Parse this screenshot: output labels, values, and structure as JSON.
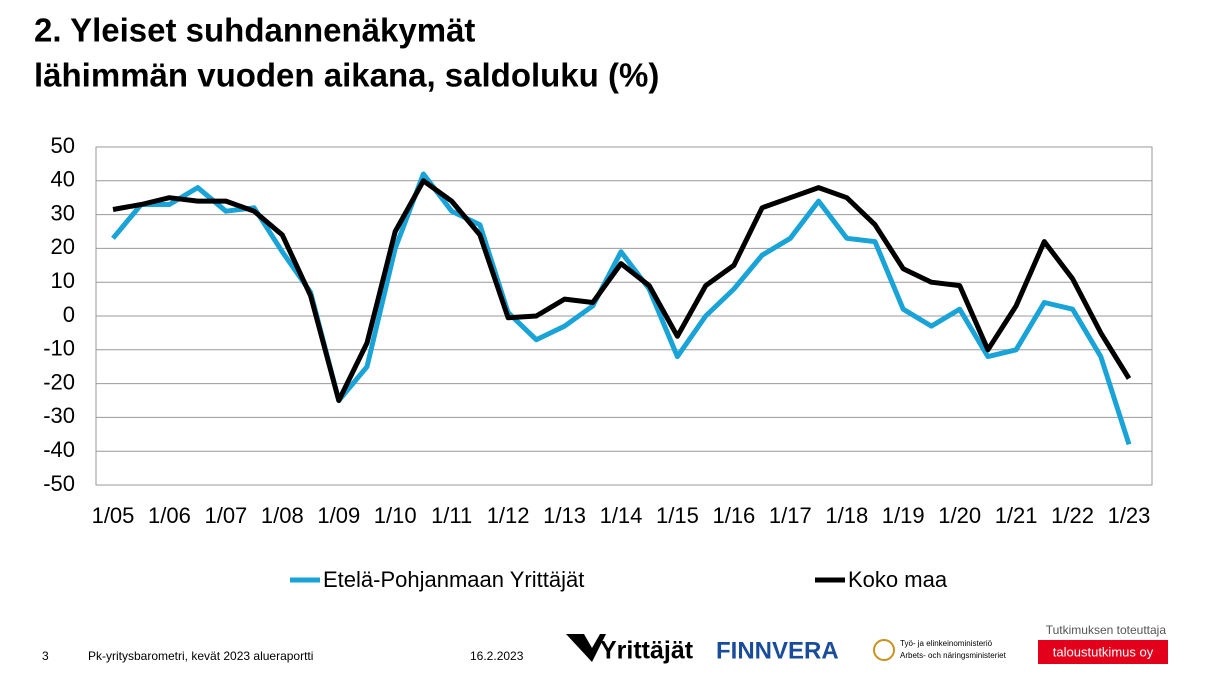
{
  "chart_data": {
    "type": "line",
    "title": [
      "2. Yleiset suhdannenäkymät",
      "lähimmän vuoden aikana, saldoluku (%)"
    ],
    "categories": [
      "1/05",
      null,
      "1/06",
      null,
      "1/07",
      null,
      "1/08",
      null,
      "1/09",
      null,
      "1/10",
      null,
      "1/11",
      null,
      "1/12",
      null,
      "1/13",
      null,
      "1/14",
      null,
      "1/15",
      null,
      "1/16",
      null,
      "1/17",
      null,
      "1/18",
      null,
      "1/19",
      null,
      "1/20",
      null,
      "1/21",
      null,
      "1/22",
      null,
      "1/23"
    ],
    "series": [
      {
        "name": "Etelä-Pohjanmaan Yrittäjät",
        "color": "#1aa3d6",
        "values": [
          23,
          33,
          33,
          38,
          31,
          32,
          19,
          7,
          -25,
          -15,
          20,
          42,
          31,
          27,
          1,
          -7,
          -3,
          3,
          19,
          8,
          -12,
          0,
          8,
          18,
          23,
          34,
          23,
          22,
          2,
          -3,
          2,
          -12,
          -10,
          4,
          2,
          -12,
          -38
        ]
      },
      {
        "name": "Koko maa",
        "color": "#000000",
        "values": [
          31.5,
          33,
          35,
          34,
          34,
          31,
          24,
          6,
          -25,
          -8,
          25,
          40,
          34,
          24,
          -0.5,
          0,
          5,
          4,
          15.5,
          9,
          -6,
          9,
          15,
          32,
          35,
          38,
          35,
          27,
          14,
          10,
          9,
          -10,
          3,
          22,
          11,
          -5,
          -18.5
        ]
      }
    ],
    "ylim": [
      -50,
      50
    ],
    "yticks": [
      -50,
      -40,
      -30,
      -20,
      -10,
      0,
      10,
      20,
      30,
      40,
      50
    ],
    "grid": true,
    "legend": "bottom"
  },
  "footer": {
    "page": "3",
    "report": "Pk-yritysbarometri, kevät 2023 alueraportti",
    "date": "16.2.2023",
    "logos": [
      "Yrittäjät",
      "FINNVERA",
      "Työ- ja elinkeinoministeriö",
      "Arbets- och näringsministeriet"
    ],
    "producer_label": "Tutkimuksen toteuttaja",
    "producer": "taloustutkimus oy"
  }
}
